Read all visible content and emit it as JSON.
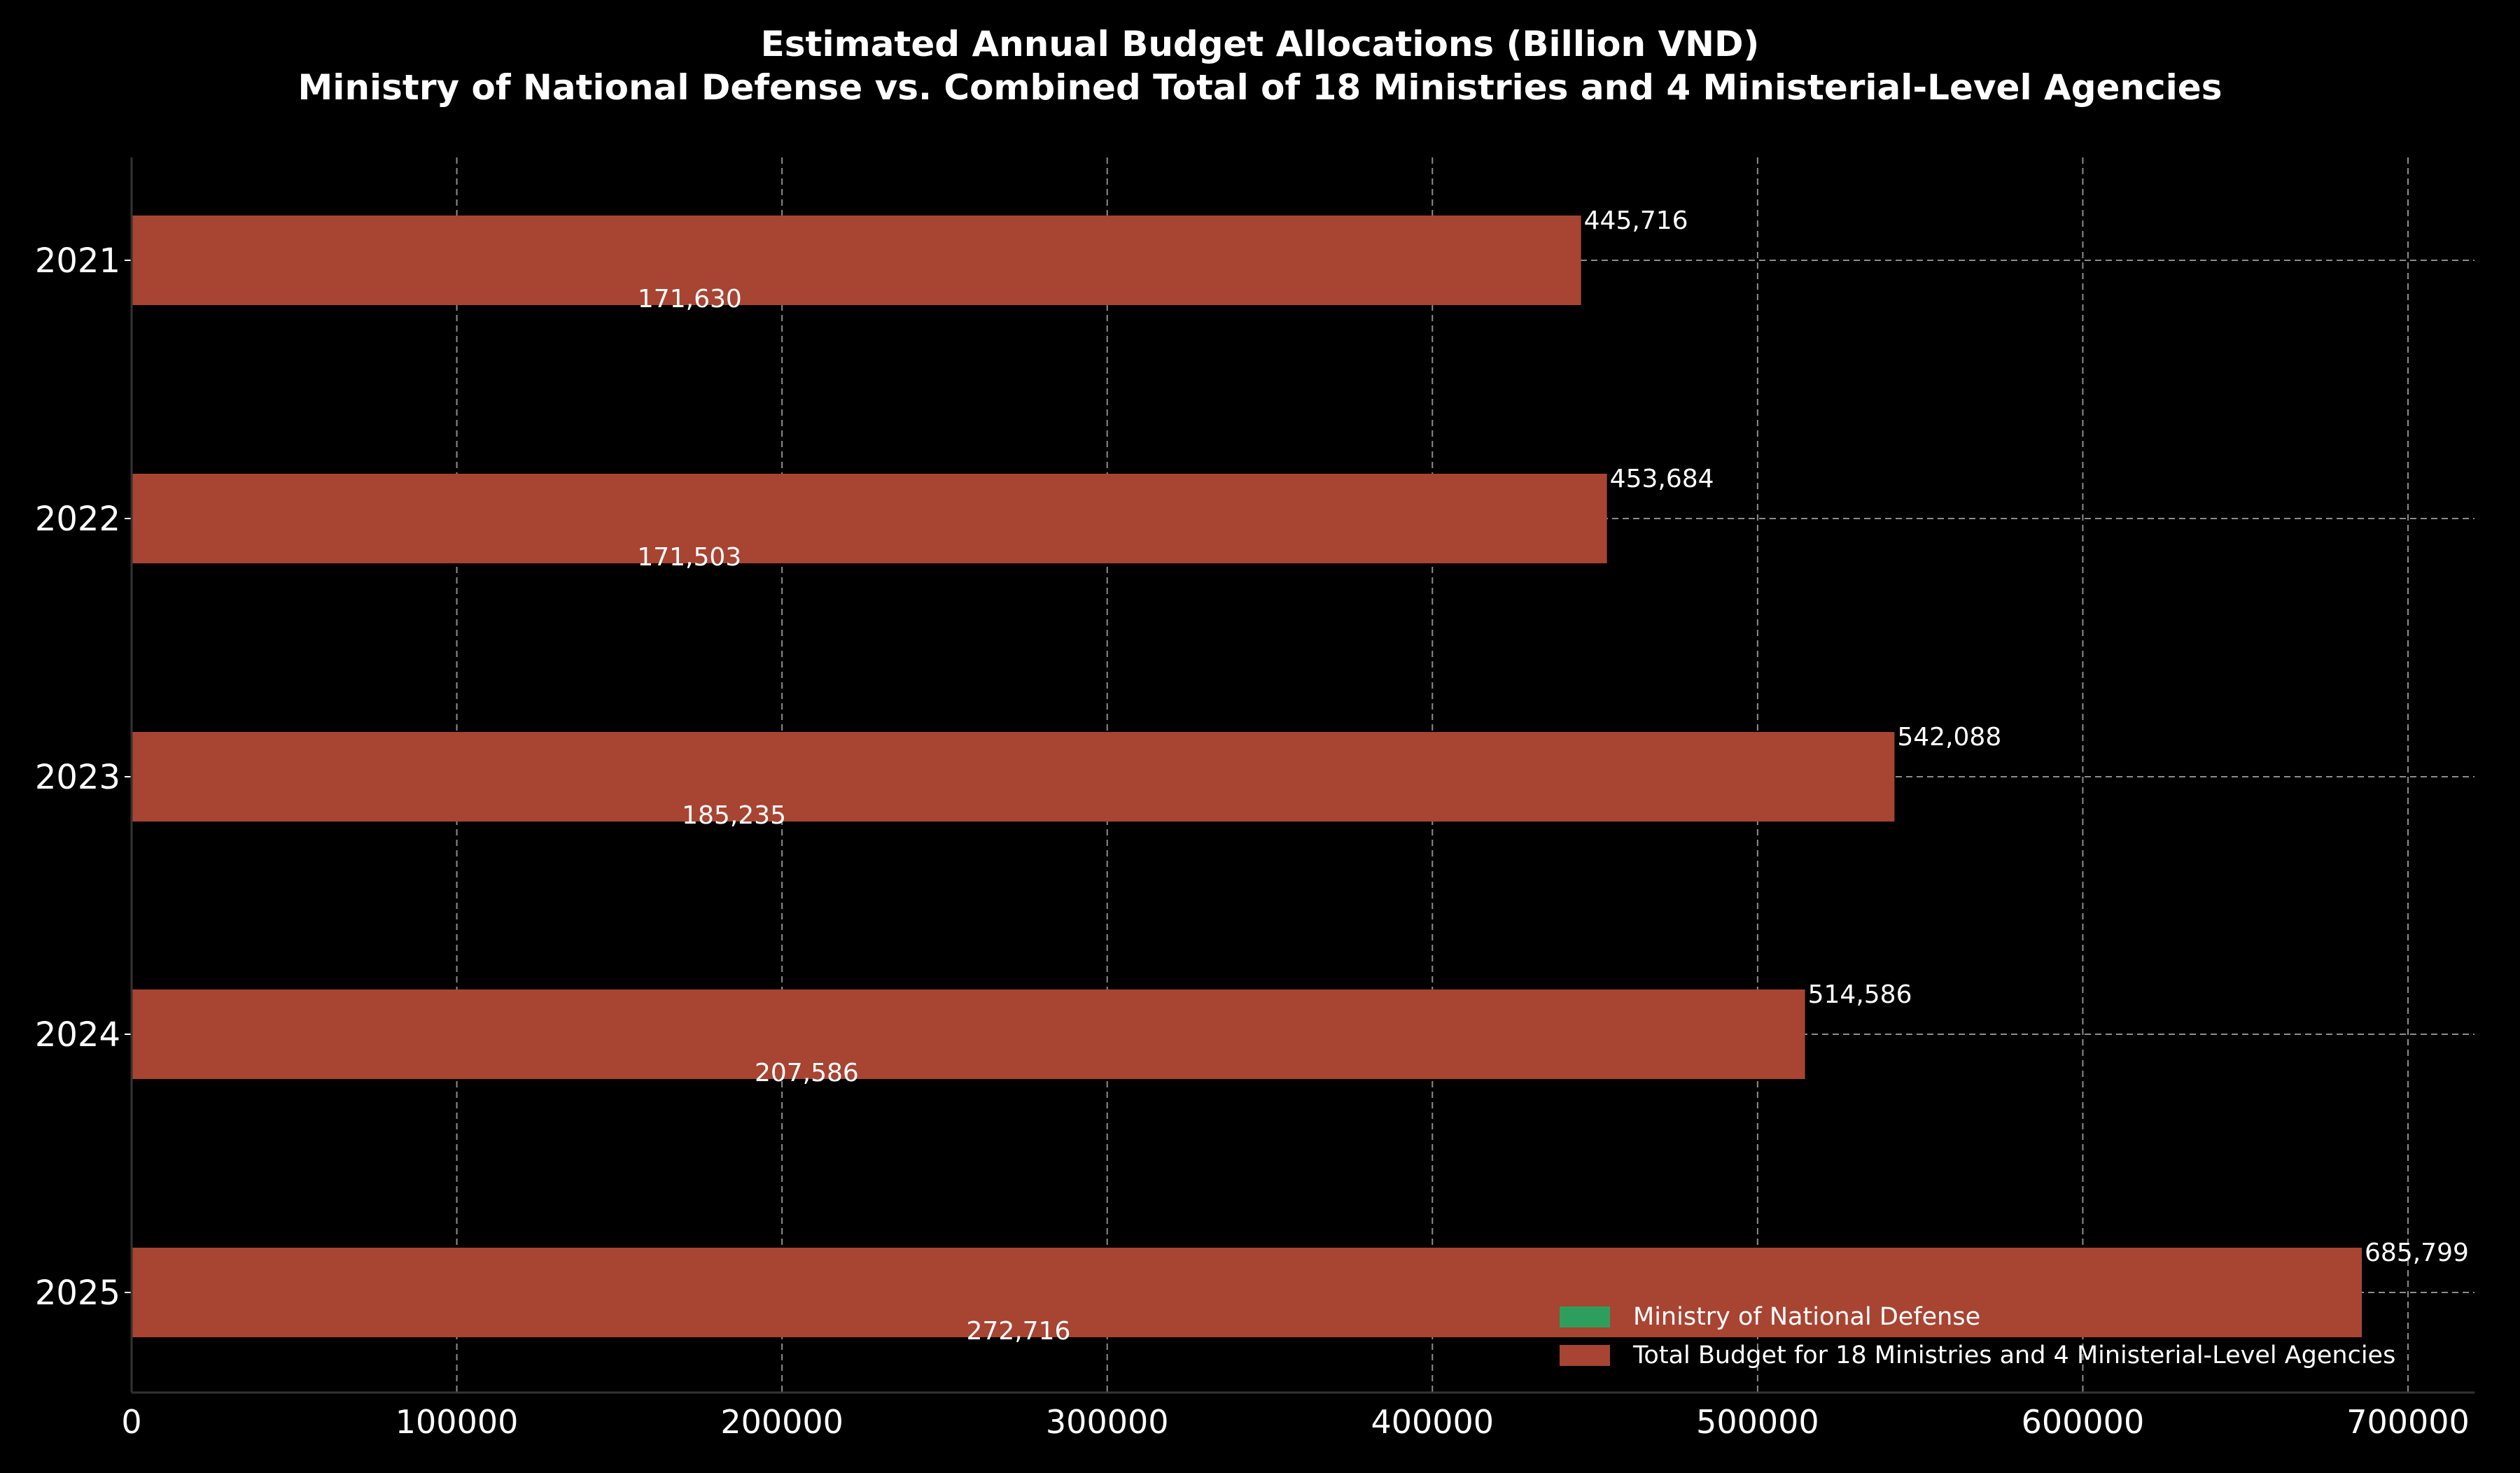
{
  "chart_data": {
    "type": "bar",
    "orientation": "horizontal",
    "title": "Estimated Annual Budget Allocations (Billion VND)",
    "subtitle": "Ministry of National Defense vs. Combined Total of 18 Ministries and 4 Ministerial-Level Agencies",
    "xlabel": "",
    "ylabel": "",
    "xlim": [
      0,
      720000
    ],
    "xticks": [
      0,
      100000,
      200000,
      300000,
      400000,
      500000,
      600000,
      700000
    ],
    "categories": [
      "2021",
      "2022",
      "2023",
      "2024",
      "2025"
    ],
    "series": [
      {
        "name": "Ministry of National Defense",
        "color": "#2e9e5e",
        "values": [
          171630,
          171503,
          185235,
          207586,
          272716
        ],
        "labels": [
          "171,630",
          "171,503",
          "185,235",
          "207,586",
          "272,716"
        ]
      },
      {
        "name": "Total Budget for 18 Ministries and 4 Ministerial-Level Agencies",
        "color": "#a84432",
        "values": [
          445716,
          453684,
          542088,
          514586,
          685799
        ],
        "labels": [
          "445,716",
          "453,684",
          "542,088",
          "514,586",
          "685,799"
        ]
      }
    ],
    "grid": true,
    "legend_position": "bottom-right"
  },
  "colors": {
    "background": "#000000",
    "text": "#ffffff",
    "grid": "#8c8c8c",
    "axis": "#333333"
  }
}
